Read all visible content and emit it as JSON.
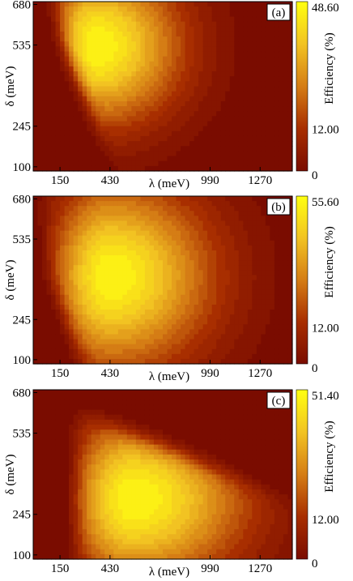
{
  "figure": {
    "colors": {
      "low": "#7a0c00",
      "mid": "#d57d15",
      "high": "#ffff10",
      "contour_line": "#3a1a00",
      "tag_fill": "#ffffff"
    }
  },
  "chart_data": [
    {
      "type": "heatmap",
      "panel_label": "(a)",
      "xlabel": "λ (meV)",
      "ylabel": "δ (meV)",
      "colorbar_label": "Efficiency (%)",
      "x_ticks": [
        "150",
        "430",
        "990",
        "1270"
      ],
      "x_tick_values": [
        150,
        430,
        990,
        1270
      ],
      "y_ticks": [
        "100",
        "245",
        "535",
        "680"
      ],
      "y_tick_values": [
        100,
        245,
        535,
        680
      ],
      "xlim": [
        0,
        1450
      ],
      "ylim": [
        85,
        690
      ],
      "colorbar_ticks": [
        "0",
        "12.00",
        "48.60"
      ],
      "colorbar_tick_values": [
        0,
        12.0,
        48.6
      ],
      "vmin": 0,
      "vmax": 48.6,
      "peak": 48.6,
      "peak_location": {
        "x": 350,
        "y": 530
      },
      "spread_x": 470,
      "spread_y": 280,
      "low_edge_x": 170,
      "cut_slope": 0.62,
      "cut_intercept": 100,
      "grid": false
    },
    {
      "type": "heatmap",
      "panel_label": "(b)",
      "xlabel": "λ (meV)",
      "ylabel": "δ (meV)",
      "colorbar_label": "Efficiency (%)",
      "x_ticks": [
        "150",
        "430",
        "990",
        "1270"
      ],
      "x_tick_values": [
        150,
        430,
        990,
        1270
      ],
      "y_ticks": [
        "100",
        "245",
        "535",
        "680"
      ],
      "y_tick_values": [
        100,
        245,
        535,
        680
      ],
      "xlim": [
        0,
        1450
      ],
      "ylim": [
        85,
        690
      ],
      "colorbar_ticks": [
        "0",
        "12.00",
        "55.60"
      ],
      "colorbar_tick_values": [
        0,
        12.0,
        55.6
      ],
      "vmin": 0,
      "vmax": 55.6,
      "peak": 55.6,
      "peak_location": {
        "x": 430,
        "y": 400
      },
      "spread_x": 560,
      "spread_y": 330,
      "low_edge_x": 90,
      "cut_slope": 0.55,
      "cut_intercept": 20,
      "grid": false
    },
    {
      "type": "heatmap",
      "panel_label": "(c)",
      "xlabel": "λ (meV)",
      "ylabel": "δ (meV)",
      "colorbar_label": "Efficiency (%)",
      "x_ticks": [
        "150",
        "430",
        "990",
        "1270"
      ],
      "x_tick_values": [
        150,
        430,
        990,
        1270
      ],
      "y_ticks": [
        "100",
        "245",
        "535",
        "680"
      ],
      "y_tick_values": [
        100,
        245,
        535,
        680
      ],
      "xlim": [
        0,
        1450
      ],
      "ylim": [
        85,
        690
      ],
      "colorbar_ticks": [
        "0",
        "12.00",
        "51.40"
      ],
      "colorbar_tick_values": [
        0,
        12.0,
        51.4
      ],
      "vmin": 0,
      "vmax": 51.4,
      "peak": 51.4,
      "peak_location": {
        "x": 560,
        "y": 300
      },
      "spread_x": 620,
      "spread_y": 300,
      "low_edge_x": 230,
      "cut_slope": 0.0,
      "cut_intercept": 0,
      "grid": false
    }
  ]
}
